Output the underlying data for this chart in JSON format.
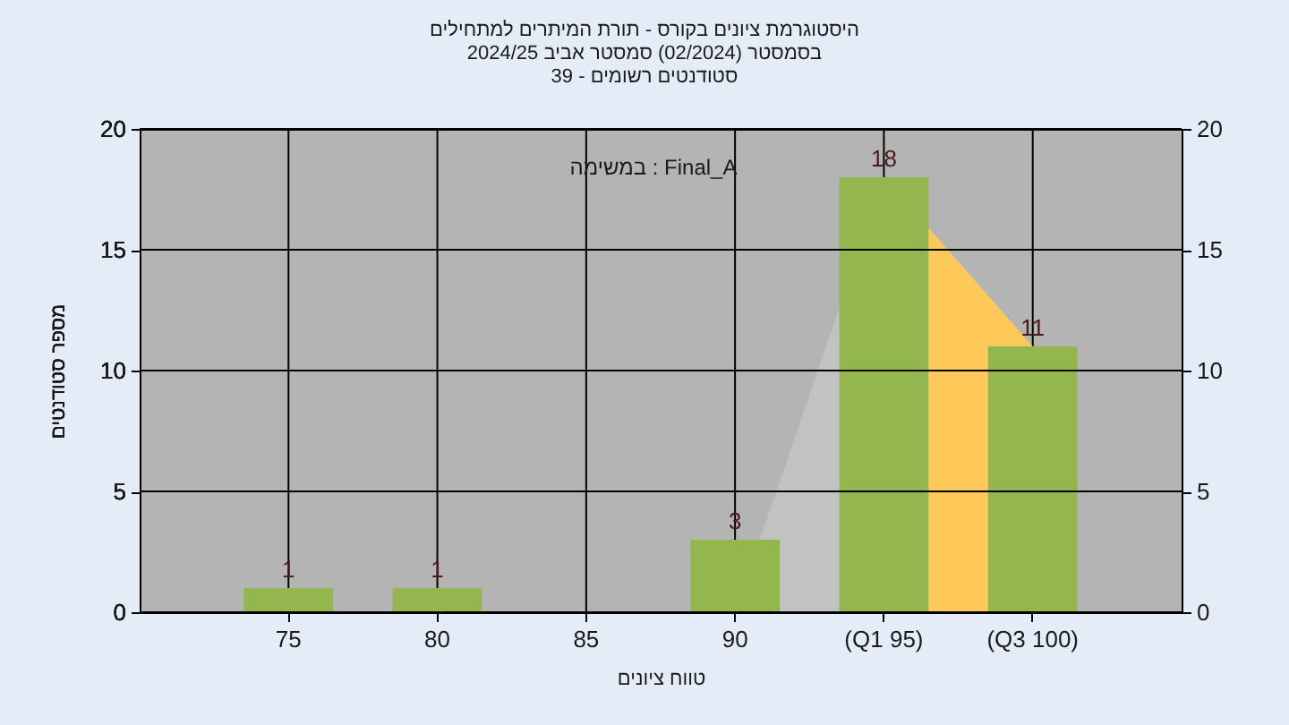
{
  "chart_data": {
    "type": "bar",
    "title": "היסטוגרמת ציונים בקורס - תורת המיתרים למתחילים\nבסמסטר  (02/2024)  סמסטר אביב 2024/25\nסטודנטים רשומים - 39",
    "xlabel": "טווח ציונים",
    "ylabel": "מספר סטודנטים",
    "annotations": [
      "במשימה : Final_A"
    ],
    "categories": [
      "75",
      "80",
      "85",
      "90",
      "(Q1 95)",
      "(Q3 100)"
    ],
    "series": [
      {
        "type": "area",
        "color": "#c2c2c2",
        "values": [
          null,
          null,
          null,
          0,
          18,
          null
        ]
      },
      {
        "type": "area",
        "color": "#ffc95a",
        "values": [
          null,
          null,
          null,
          null,
          18,
          11
        ]
      },
      {
        "color": "#93b64f",
        "values": [
          1,
          1,
          0,
          3,
          18,
          11
        ],
        "value_labels": [
          "1",
          "1",
          null,
          "3",
          "18",
          "11"
        ]
      }
    ],
    "ylim": [
      0,
      20
    ],
    "yticks": [
      0,
      5,
      10,
      15,
      20
    ],
    "y2lim": [
      0,
      20
    ],
    "y2ticks": [
      0,
      5,
      10,
      15,
      20
    ],
    "grid": true
  }
}
